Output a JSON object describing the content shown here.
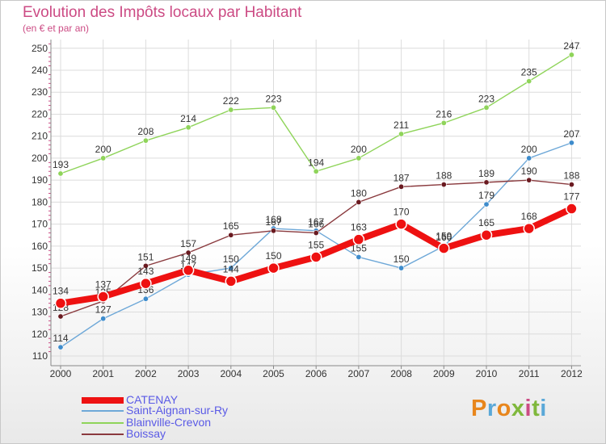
{
  "title": "Evolution des Impôts locaux par Habitant",
  "subtitle": "(en € et par an)",
  "brand": "Proxiti",
  "colors": {
    "title": "#cc4b84",
    "legend_text": "#5a5ae6",
    "brand_letters": [
      "#e8861c",
      "#5aa8d8",
      "#e8861c",
      "#7fb83c",
      "#cc4b84",
      "#7fb83c",
      "#5aa8d8"
    ]
  },
  "chart_data": {
    "type": "line",
    "title": "Evolution des Impôts locaux par Habitant",
    "subtitle": "(en € et par an)",
    "xlabel": "",
    "ylabel": "",
    "ylim": [
      110,
      250
    ],
    "yticks": [
      "110",
      "120",
      "130",
      "140",
      "150",
      "160",
      "170",
      "180",
      "190",
      "200",
      "210",
      "220",
      "230",
      "240",
      "250"
    ],
    "categories": [
      "2000",
      "2001",
      "2002",
      "2003",
      "2004",
      "2005",
      "2006",
      "2007",
      "2008",
      "2009",
      "2010",
      "2011",
      "2012"
    ],
    "grid": true,
    "legend_position": "bottom-left",
    "series": [
      {
        "name": "Blainville-Crevon",
        "color": "#8fd45a",
        "line_width": 1.4,
        "marker_r": 3.2,
        "values": [
          193,
          200,
          208,
          214,
          222,
          223,
          194,
          200,
          211,
          216,
          223,
          235,
          247
        ],
        "labels": [
          "193",
          "200",
          "208",
          "214",
          "222",
          "223",
          "194",
          "200",
          "211",
          "216",
          "223",
          "235",
          "247"
        ]
      },
      {
        "name": "Saint-Aignan-sur-Ry",
        "color": "#6ea8d8",
        "marker_color": "#3e8ccc",
        "line_width": 1.4,
        "marker_r": 3.2,
        "values": [
          114,
          127,
          136,
          147,
          150,
          168,
          167,
          155,
          150,
          160,
          179,
          200,
          207
        ],
        "labels": [
          "114",
          "127",
          "136",
          "147",
          "150",
          "168",
          "167",
          "155",
          "150",
          "160",
          "179",
          "200",
          "207"
        ]
      },
      {
        "name": "Boissay",
        "color": "#8a3a3e",
        "marker_color": "#6a1a20",
        "line_width": 1.4,
        "marker_r": 3.2,
        "values": [
          128,
          135,
          151,
          157,
          165,
          167,
          166,
          180,
          187,
          188,
          189,
          190,
          188
        ],
        "labels": [
          "128",
          "135",
          "151",
          "157",
          "165",
          "167",
          "166",
          "180",
          "187",
          "188",
          "189",
          "190",
          "188"
        ]
      },
      {
        "name": "CATENAY",
        "color": "#ee1111",
        "line_width": 8,
        "marker_r": 6.5,
        "values": [
          134,
          137,
          143,
          149,
          144,
          150,
          155,
          163,
          170,
          159,
          165,
          168,
          177
        ],
        "labels": [
          "134",
          "137",
          "143",
          "149",
          "144",
          "150",
          "155",
          "163",
          "170",
          "159",
          "165",
          "168",
          "177"
        ]
      }
    ]
  },
  "legend": [
    {
      "label": "CATENAY",
      "color": "#ee1111",
      "thickness": 8
    },
    {
      "label": "Saint-Aignan-sur-Ry",
      "color": "#6ea8d8",
      "thickness": 2
    },
    {
      "label": "Blainville-Crevon",
      "color": "#8fd45a",
      "thickness": 2
    },
    {
      "label": "Boissay",
      "color": "#8a3a3e",
      "thickness": 2
    }
  ]
}
